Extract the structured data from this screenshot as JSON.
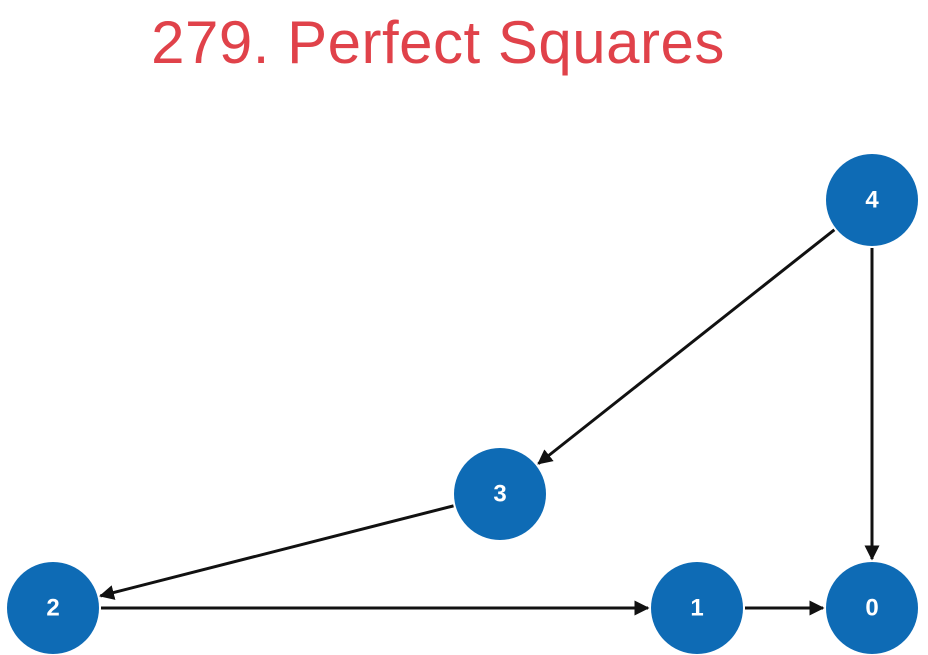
{
  "title": "279. Perfect Squares",
  "colors": {
    "title": "#e0424a",
    "node_fill": "#0e6bb5",
    "node_text": "#ffffff",
    "edge": "#111111"
  },
  "graph": {
    "nodes": [
      {
        "id": "4",
        "label": "4"
      },
      {
        "id": "3",
        "label": "3"
      },
      {
        "id": "2",
        "label": "2"
      },
      {
        "id": "1",
        "label": "1"
      },
      {
        "id": "0",
        "label": "0"
      }
    ],
    "edges": [
      {
        "from": "4",
        "to": "3"
      },
      {
        "from": "4",
        "to": "0"
      },
      {
        "from": "3",
        "to": "2"
      },
      {
        "from": "2",
        "to": "1"
      },
      {
        "from": "1",
        "to": "0"
      }
    ]
  }
}
